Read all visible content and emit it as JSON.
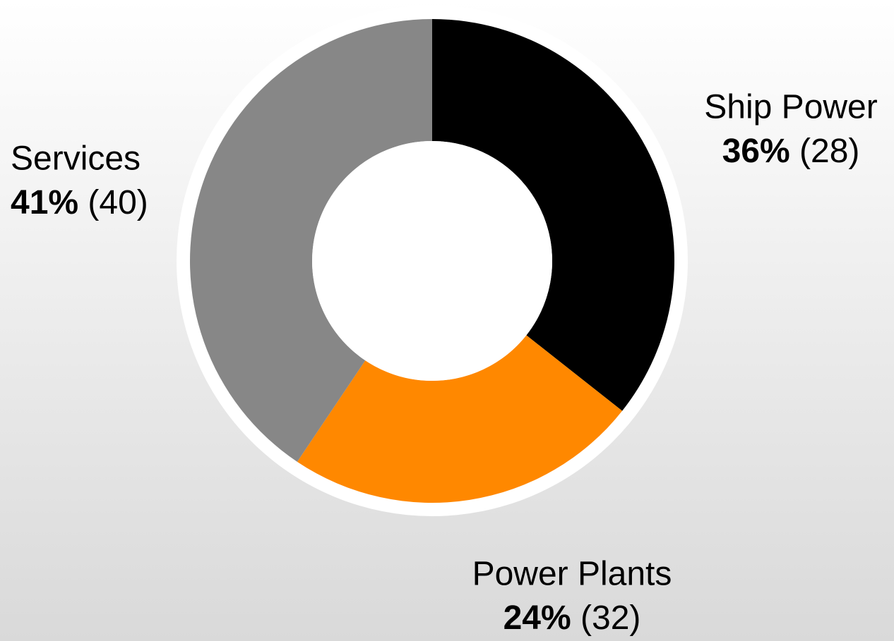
{
  "chart_data": {
    "type": "donut",
    "categories": [
      "Ship Power",
      "Power Plants",
      "Services"
    ],
    "values": [
      36,
      24,
      41
    ],
    "value_labels": [
      "36%",
      "24%",
      "41%"
    ],
    "secondary_labels": [
      "(28)",
      "(32)",
      "(40)"
    ],
    "colors": [
      "#000000",
      "#ff8800",
      "#878787"
    ]
  }
}
